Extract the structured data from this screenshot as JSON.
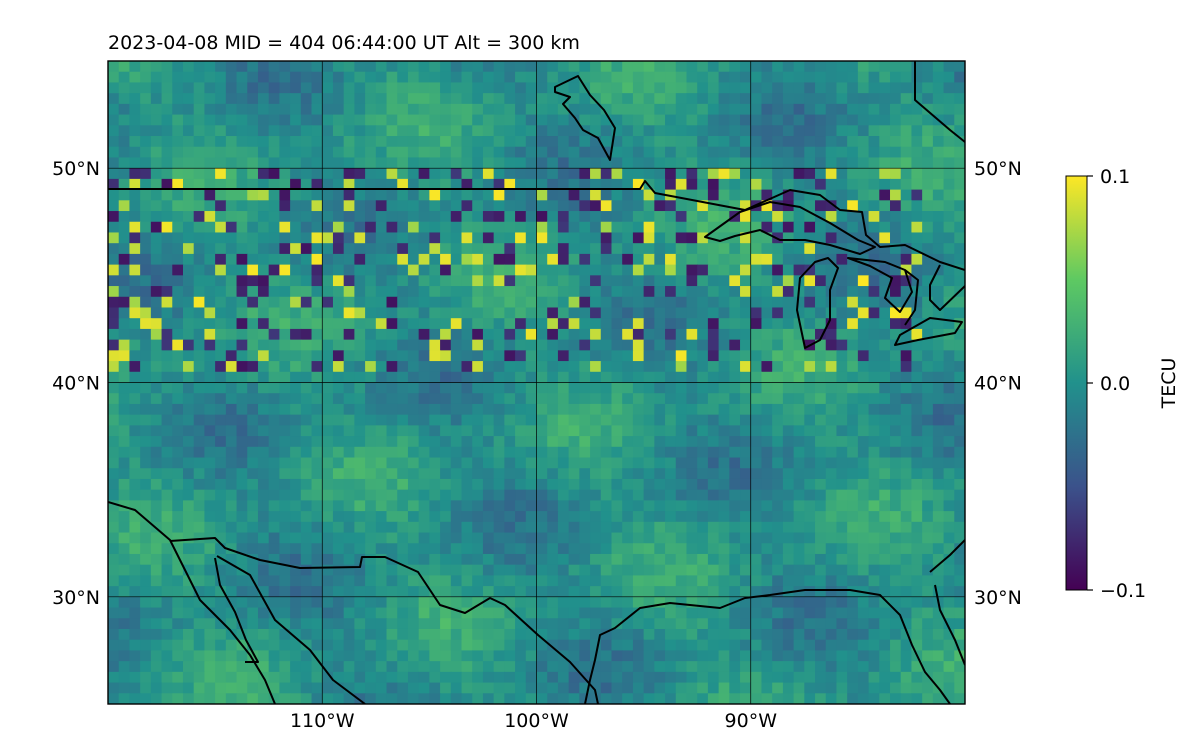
{
  "header": {
    "title": "2023-04-08  MID = 404    06:44:00  UT  Alt = 300 km"
  },
  "map": {
    "lon_range": [
      -120,
      -80
    ],
    "lat_range": [
      25,
      55
    ],
    "gridlines": true,
    "grid": {
      "lon_ticks": [
        {
          "value": -110,
          "label": "110°W"
        },
        {
          "value": -100,
          "label": "100°W"
        },
        {
          "value": -90,
          "label": "90°W"
        }
      ],
      "lat_ticks": [
        {
          "value": 50,
          "label": "50°N"
        },
        {
          "value": 40,
          "label": "40°N"
        },
        {
          "value": 30,
          "label": "30°N"
        }
      ]
    },
    "field": {
      "name": "TEC perturbation",
      "disturbed_band_lat": [
        41,
        50
      ],
      "background_color": "#2a8a86"
    },
    "features": [
      "coastlines",
      "great-lakes",
      "us-canada-border"
    ]
  },
  "colorbar": {
    "label": "TECU",
    "colormap": "viridis",
    "range": [
      -0.1,
      0.1
    ],
    "ticks": [
      {
        "value": 0.1,
        "label": "0.1"
      },
      {
        "value": 0.0,
        "label": "0.0"
      },
      {
        "value": -0.1,
        "label": "−0.1"
      }
    ],
    "colors": [
      "#440154",
      "#3b528b",
      "#21918c",
      "#5ec962",
      "#fde725"
    ]
  }
}
